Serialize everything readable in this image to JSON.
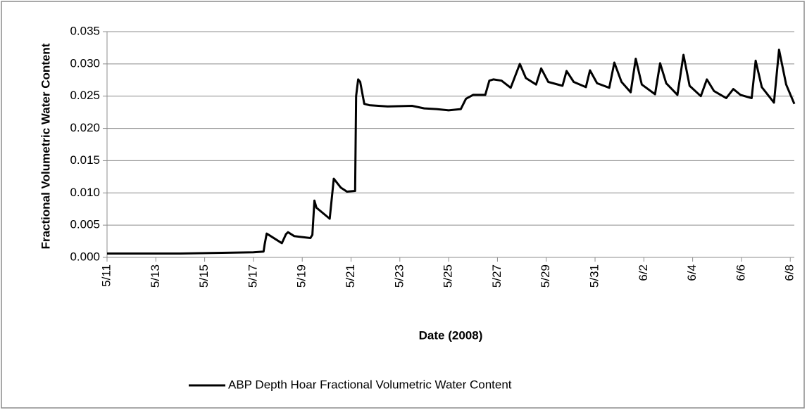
{
  "chart_data": {
    "type": "line",
    "x_label": "Date (2008)",
    "y_label": "Fractional Volumetric Water Content",
    "grid": true,
    "legend": "bottom",
    "xlim": [
      "2008-05-11T00:00",
      "2008-06-08T04:00"
    ],
    "xticks": [
      {
        "value": "2008-05-11T00:00",
        "label": "5/11"
      },
      {
        "value": "2008-05-13T00:00",
        "label": "5/13"
      },
      {
        "value": "2008-05-15T00:00",
        "label": "5/15"
      },
      {
        "value": "2008-05-17T00:00",
        "label": "5/17"
      },
      {
        "value": "2008-05-19T00:00",
        "label": "5/19"
      },
      {
        "value": "2008-05-21T00:00",
        "label": "5/21"
      },
      {
        "value": "2008-05-23T00:00",
        "label": "5/23"
      },
      {
        "value": "2008-05-25T00:00",
        "label": "5/25"
      },
      {
        "value": "2008-05-27T00:00",
        "label": "5/27"
      },
      {
        "value": "2008-05-29T00:00",
        "label": "5/29"
      },
      {
        "value": "2008-05-31T00:00",
        "label": "5/31"
      },
      {
        "value": "2008-06-02T00:00",
        "label": "6/2"
      },
      {
        "value": "2008-06-04T00:00",
        "label": "6/4"
      },
      {
        "value": "2008-06-06T00:00",
        "label": "6/6"
      },
      {
        "value": "2008-06-08T00:00",
        "label": "6/8"
      }
    ],
    "ylim": [
      0,
      0.035
    ],
    "yticks": [
      {
        "value": 0,
        "label": "0.000"
      },
      {
        "value": 0.005,
        "label": "0.005"
      },
      {
        "value": 0.01,
        "label": "0.010"
      },
      {
        "value": 0.015,
        "label": "0.015"
      },
      {
        "value": 0.02,
        "label": "0.020"
      },
      {
        "value": 0.025,
        "label": "0.025"
      },
      {
        "value": 0.03,
        "label": "0.030"
      },
      {
        "value": 0.035,
        "label": "0.035"
      }
    ],
    "x": [
      "2008-05-11T00:00",
      "2008-05-14T00:00",
      "2008-05-17T00:00",
      "2008-05-17T10:00",
      "2008-05-17T11:00",
      "2008-05-17T13:00",
      "2008-05-18T04:00",
      "2008-05-18T08:00",
      "2008-05-18T10:00",
      "2008-05-18T16:00",
      "2008-05-19T08:00",
      "2008-05-19T10:00",
      "2008-05-19T12:00",
      "2008-05-19T14:00",
      "2008-05-20T03:00",
      "2008-05-20T07:00",
      "2008-05-20T14:00",
      "2008-05-20T20:00",
      "2008-05-21T04:00",
      "2008-05-21T05:00",
      "2008-05-21T07:00",
      "2008-05-21T09:00",
      "2008-05-21T13:00",
      "2008-05-21T18:00",
      "2008-05-22T12:00",
      "2008-05-23T12:00",
      "2008-05-24T00:00",
      "2008-05-24T12:00",
      "2008-05-25T00:00",
      "2008-05-25T12:00",
      "2008-05-25T17:00",
      "2008-05-26T00:00",
      "2008-05-26T12:00",
      "2008-05-26T16:00",
      "2008-05-26T20:00",
      "2008-05-27T04:00",
      "2008-05-27T13:00",
      "2008-05-27T22:00",
      "2008-05-28T04:00",
      "2008-05-28T14:00",
      "2008-05-28T19:00",
      "2008-05-29T02:00",
      "2008-05-29T16:00",
      "2008-05-29T20:00",
      "2008-05-30T03:00",
      "2008-05-30T15:00",
      "2008-05-30T19:00",
      "2008-05-31T02:00",
      "2008-05-31T14:00",
      "2008-05-31T19:00",
      "2008-06-01T02:00",
      "2008-06-01T11:00",
      "2008-06-01T16:00",
      "2008-06-01T22:00",
      "2008-06-02T11:00",
      "2008-06-02T16:00",
      "2008-06-02T22:00",
      "2008-06-03T09:00",
      "2008-06-03T15:00",
      "2008-06-03T21:00",
      "2008-06-04T08:00",
      "2008-06-04T14:00",
      "2008-06-04T21:00",
      "2008-06-05T09:00",
      "2008-06-05T16:00",
      "2008-06-05T23:00",
      "2008-06-06T10:00",
      "2008-06-06T14:00",
      "2008-06-06T20:00",
      "2008-06-07T08:00",
      "2008-06-07T13:00",
      "2008-06-07T20:00",
      "2008-06-08T04:00"
    ],
    "series": [
      {
        "name": "ABP Depth Hoar Fractional Volumetric Water Content",
        "color": "#000000",
        "values": [
          0.0006,
          0.0006,
          0.0008,
          0.0009,
          0.002,
          0.0037,
          0.0022,
          0.0036,
          0.0039,
          0.0033,
          0.003,
          0.0035,
          0.0088,
          0.0077,
          0.006,
          0.0122,
          0.0108,
          0.0102,
          0.0103,
          0.025,
          0.0276,
          0.0272,
          0.0238,
          0.0236,
          0.0234,
          0.0235,
          0.0231,
          0.023,
          0.0228,
          0.023,
          0.0246,
          0.0252,
          0.0252,
          0.0274,
          0.0276,
          0.0274,
          0.0263,
          0.03,
          0.0278,
          0.0268,
          0.0293,
          0.0272,
          0.0266,
          0.0289,
          0.0272,
          0.0264,
          0.029,
          0.027,
          0.0263,
          0.0302,
          0.0272,
          0.0256,
          0.0308,
          0.0268,
          0.0253,
          0.0301,
          0.027,
          0.0252,
          0.0314,
          0.0266,
          0.025,
          0.0276,
          0.0258,
          0.0247,
          0.0261,
          0.0252,
          0.0247,
          0.0305,
          0.0264,
          0.024,
          0.0322,
          0.0268,
          0.0238
        ]
      }
    ]
  }
}
